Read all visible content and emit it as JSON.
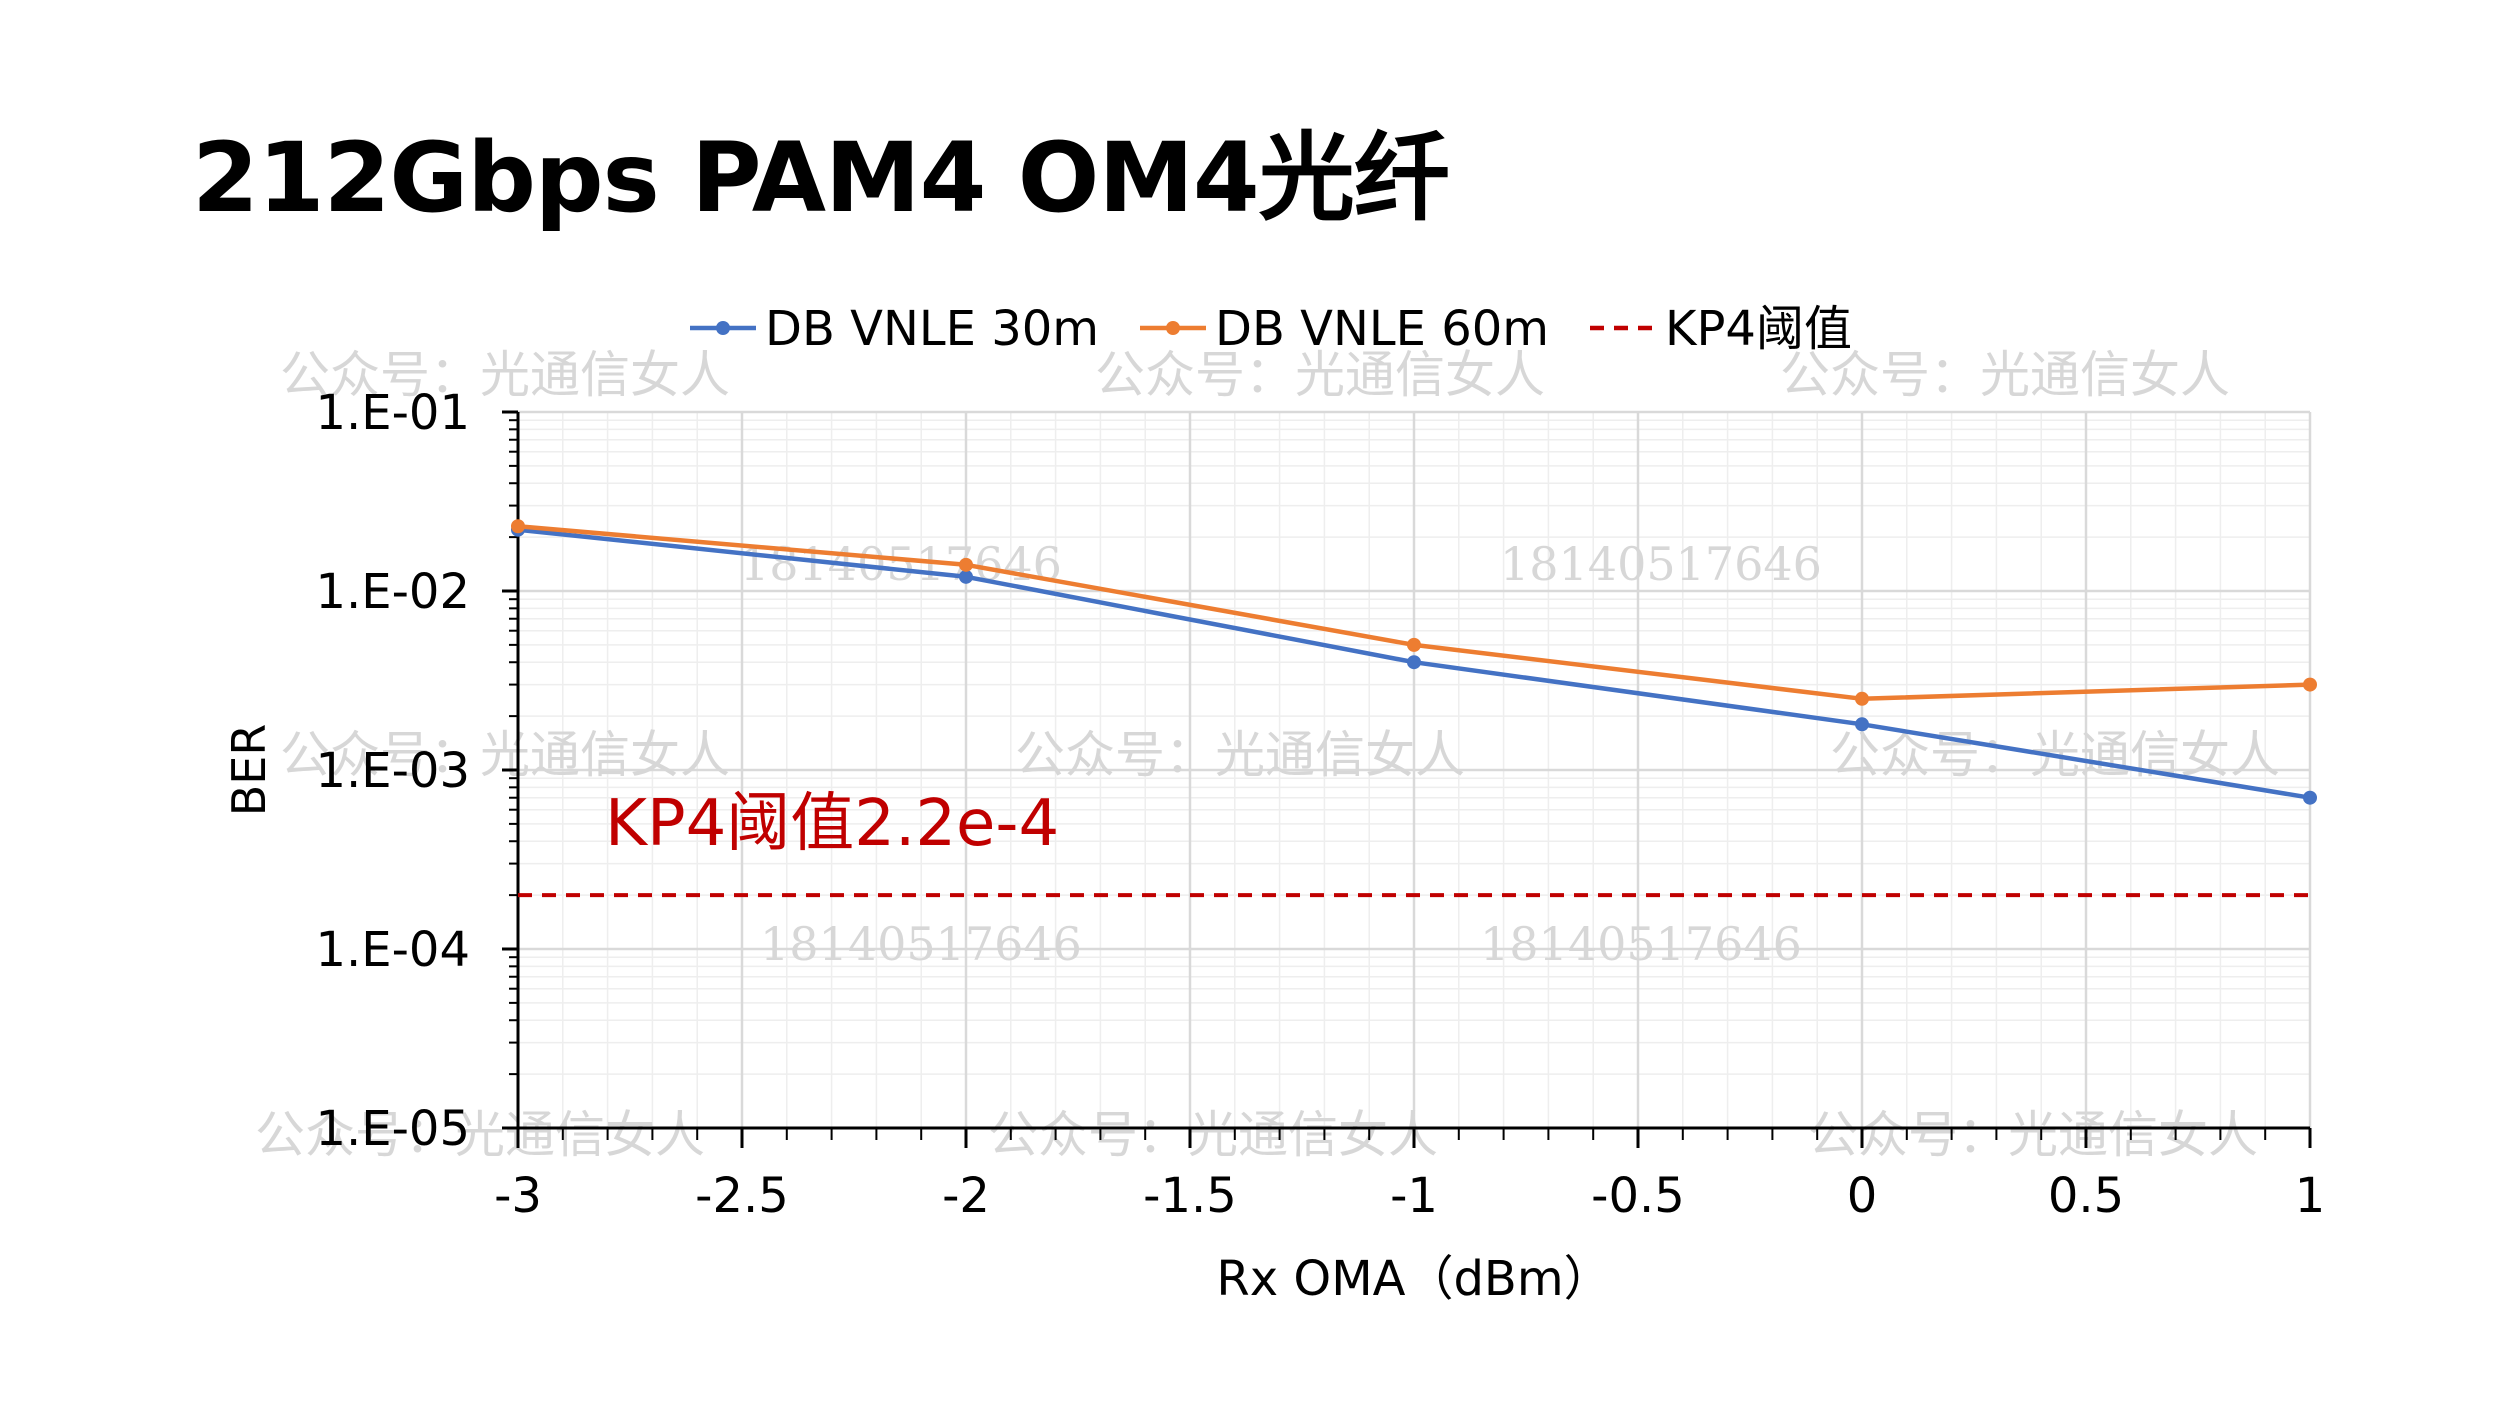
{
  "title": "212Gbps PAM4 OM4光纤",
  "colors": {
    "series_30m": "#4472C4",
    "series_60m": "#ED7D31",
    "threshold": "#C00000",
    "axis": "#000000",
    "grid_major": "#d9d9d9",
    "grid_minor": "#eeeeee",
    "watermark": "#d7d7d7"
  },
  "watermarks": {
    "account": "公众号：光通信女人",
    "phone": "18140517646"
  },
  "chart_data": {
    "type": "line",
    "title": "",
    "xlabel": "Rx OMA（dBm）",
    "ylabel": "BER",
    "yscale": "log",
    "xlim": [
      -3,
      1
    ],
    "ylim": [
      1e-05,
      0.1
    ],
    "x_ticks": [
      "-3",
      "-2.5",
      "-2",
      "-1.5",
      "-1",
      "-0.5",
      "0",
      "0.5",
      "1"
    ],
    "y_ticks": [
      "1.E-05",
      "1.E-04",
      "1.E-03",
      "1.E-02",
      "1.E-01"
    ],
    "legend_position": "top",
    "grid": true,
    "x": [
      -3,
      -2,
      -1,
      0,
      1
    ],
    "series": [
      {
        "name": "DB VNLE 30m",
        "values": [
          0.022,
          0.012,
          0.004,
          0.0018,
          0.0007
        ],
        "style": "solid-marker"
      },
      {
        "name": "DB VNLE 60m",
        "values": [
          0.023,
          0.014,
          0.005,
          0.0025,
          0.003
        ],
        "style": "solid-marker"
      },
      {
        "name": "KP4阈值",
        "values": [
          0.0002,
          0.0002
        ],
        "x": [
          -3,
          1
        ],
        "style": "dashed"
      }
    ],
    "annotations": [
      {
        "text": "KP4阈值2.2e-4"
      }
    ]
  }
}
